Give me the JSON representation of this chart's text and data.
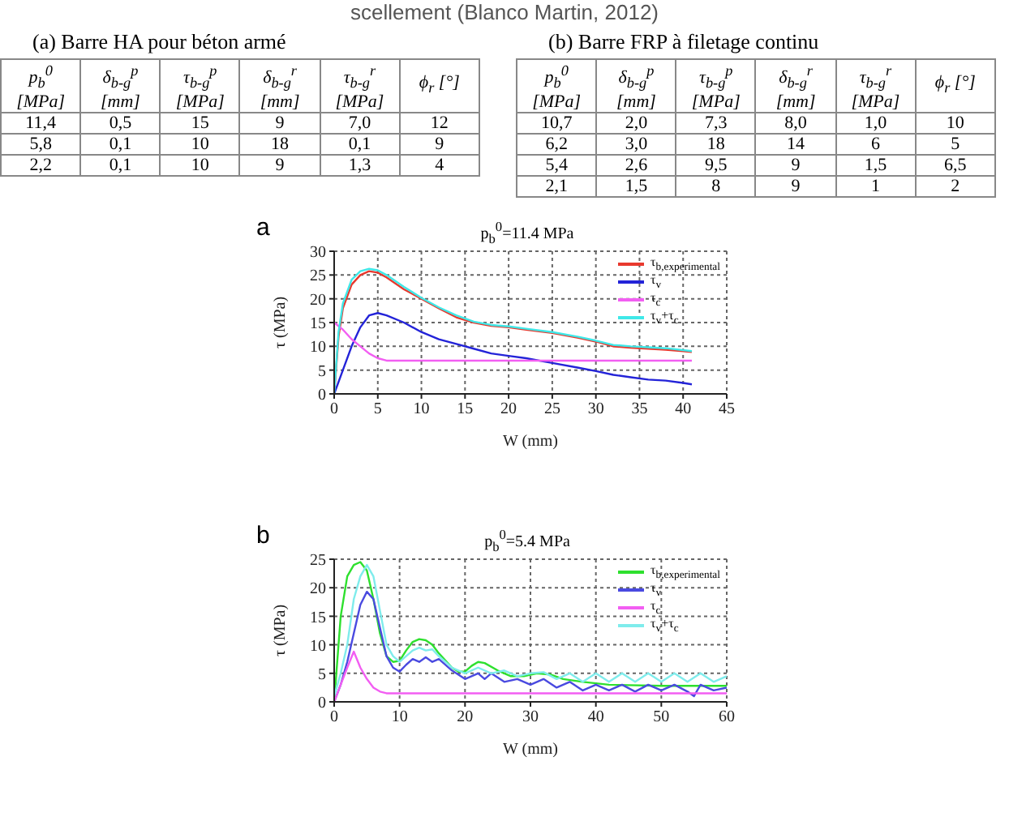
{
  "chart_data": [
    {
      "type": "other",
      "subtitle": "scellement (Blanco Martin, 2012)",
      "title": "(a)  Barre HA pour béton armé",
      "categories": [
        "p$_{b}$$^{0}$ [MPa]",
        "δ$_{b-g}$$^{p}$ [mm]",
        "τ$_{b-g}$$^{p}$ [MPa]",
        "δ$_{b-g}$$^{r}$ [mm]",
        "τ$_{b-g}$$^{r}$ [MPa]",
        "ϕ$_{r}$ [°]"
      ],
      "annotations": [
        "11,4",
        "0,5",
        "15",
        "9",
        "7,0",
        "12",
        "5,8",
        "0,1",
        "10",
        "18",
        "0,1",
        "9",
        "2,2",
        "0,1",
        "10",
        "9",
        "1,3",
        "4"
      ]
    },
    {
      "type": "other",
      "title": "(b)  Barre FRP à filetage continu",
      "categories": [
        "p$_{b}$$^{0}$ [MPa]",
        "δ$_{b-g}$$^{p}$ [mm]",
        "τ$_{b-g}$$^{p}$ [MPa]",
        "δ$_{b-g}$$^{r}$ [mm]",
        "τ$_{b-g}$$^{r}$ [MPa]",
        "ϕ$_{r}$ [°]"
      ],
      "annotations": [
        "10,7",
        "2,0",
        "7,3",
        "8,0",
        "1,0",
        "10",
        "6,2",
        "3,0",
        "18",
        "14",
        "6",
        "5",
        "5,4",
        "2,6",
        "9,5",
        "9",
        "1,5",
        "6,5",
        "2,1",
        "1,5",
        "8",
        "9",
        "1",
        "2"
      ]
    },
    {
      "type": "line",
      "title": "p$_{b}$$^{0}$=11.4 MPa",
      "annotations": [
        "a"
      ],
      "xlabel": "W (mm)",
      "ylabel": "τ (MPa)",
      "xlim": [
        0,
        45
      ],
      "xticks": [
        0,
        5,
        10,
        15,
        20,
        25,
        30,
        35,
        40,
        45
      ],
      "ylim": [
        0,
        30
      ],
      "yticks": [
        0,
        5,
        10,
        15,
        20,
        25,
        30
      ],
      "grid": true,
      "legend": "top right",
      "marker": "none",
      "line_style": "solid",
      "series": [
        {
          "name": "τ$_{b,experimental}$",
          "color": "#e8392e",
          "x": [
            0,
            0.5,
            1,
            2,
            3,
            4,
            5,
            6,
            8,
            10,
            12,
            14,
            16,
            18,
            20,
            22,
            25,
            28,
            30,
            32,
            34,
            36,
            38,
            40,
            41
          ],
          "values": [
            0,
            12,
            18,
            23,
            25,
            25.8,
            25.5,
            24.5,
            22,
            20,
            18,
            16.1,
            15,
            14.3,
            14,
            13.5,
            12.8,
            11.8,
            11,
            10,
            9.7,
            9.5,
            9.3,
            9,
            8.8
          ]
        },
        {
          "name": "τ$_{v}$",
          "color": "#2323d8",
          "x": [
            0,
            1,
            2,
            3,
            4,
            5,
            6,
            8,
            10,
            12,
            14,
            16,
            18,
            20,
            22,
            25,
            28,
            30,
            32,
            34,
            36,
            38,
            40,
            41
          ],
          "values": [
            0,
            5,
            10,
            14,
            16.5,
            17,
            16.5,
            15,
            13,
            11.5,
            10.5,
            9.5,
            8.5,
            8,
            7.5,
            6.5,
            5.5,
            4.8,
            4,
            3.5,
            3,
            2.8,
            2.3,
            2
          ]
        },
        {
          "name": "τ$_{c}$",
          "color": "#f25ef2",
          "x": [
            0,
            1,
            2,
            3,
            4,
            5,
            6,
            41
          ],
          "values": [
            15,
            13.5,
            11.5,
            10,
            8.5,
            7.5,
            7,
            7
          ]
        },
        {
          "name": "τ$_{v}$+τ$_{c}$",
          "color": "#3fe8e8",
          "x": [
            0,
            0.5,
            1,
            2,
            3,
            4,
            5,
            6,
            8,
            10,
            12,
            14,
            16,
            18,
            20,
            22,
            25,
            28,
            30,
            32,
            34,
            36,
            38,
            40,
            41
          ],
          "values": [
            0,
            13,
            19,
            24,
            25.8,
            26.3,
            26,
            25,
            22.5,
            20.2,
            18.2,
            16.5,
            15.2,
            14.5,
            14.2,
            13.7,
            13,
            12,
            11.2,
            10.3,
            10,
            9.8,
            9.6,
            9.2,
            9
          ]
        }
      ]
    },
    {
      "type": "line",
      "title": "p$_{b}$$^{0}$=5.4 MPa",
      "annotations": [
        "b"
      ],
      "xlabel": "W (mm)",
      "ylabel": "τ (MPa)",
      "xlim": [
        0,
        60
      ],
      "xticks": [
        0,
        10,
        20,
        30,
        40,
        50,
        60
      ],
      "ylim": [
        0,
        25
      ],
      "yticks": [
        0,
        5,
        10,
        15,
        20,
        25
      ],
      "grid": true,
      "legend": "top right",
      "marker": "none",
      "line_style": "solid",
      "series": [
        {
          "name": "τ$_{b,experimental}$",
          "color": "#2ee02e",
          "x": [
            0,
            1,
            2,
            3,
            4,
            5,
            6,
            7,
            8,
            9,
            10,
            11,
            12,
            13,
            14,
            15,
            16,
            18,
            19,
            20,
            21,
            22,
            23,
            25,
            27,
            29,
            31,
            33,
            35,
            38,
            42,
            50,
            60
          ],
          "values": [
            0,
            15,
            22,
            24,
            24.5,
            23,
            18,
            12,
            8,
            7,
            7.2,
            9,
            10.5,
            11,
            10.8,
            10,
            8.5,
            6,
            5.3,
            5.3,
            6.3,
            7,
            6.8,
            5.5,
            4.5,
            4.5,
            5,
            4.8,
            4,
            3.5,
            3,
            2.8,
            2.8
          ]
        },
        {
          "name": "τ$_{v}$",
          "color": "#4a4ae0",
          "x": [
            0,
            1,
            2,
            3,
            4,
            5,
            6,
            7,
            8,
            9,
            10,
            11,
            12,
            13,
            14,
            15,
            16,
            18,
            20,
            21,
            22,
            23,
            24,
            26,
            28,
            30,
            32,
            34,
            36,
            38,
            40,
            42,
            44,
            46,
            48,
            50,
            52,
            54,
            55,
            56,
            58,
            60
          ],
          "values": [
            0,
            3,
            7,
            12,
            17,
            19.3,
            18,
            13,
            8,
            6,
            5.3,
            6.5,
            7.5,
            7,
            7.8,
            7,
            7.5,
            5.5,
            4,
            4.5,
            5,
            4,
            5,
            3.5,
            4,
            3,
            4,
            2.5,
            3.5,
            2,
            3,
            2,
            3,
            1.8,
            3,
            2,
            3,
            1.8,
            1,
            3,
            2,
            2.5
          ]
        },
        {
          "name": "τ$_{c}$",
          "color": "#f25ef2",
          "x": [
            0,
            1,
            2,
            3,
            4,
            5,
            6,
            7,
            8,
            60
          ],
          "values": [
            0,
            3,
            6,
            8.8,
            6,
            4,
            2.5,
            1.8,
            1.5,
            1.5
          ]
        },
        {
          "name": "τ$_{v}$+τ$_{c}$",
          "color": "#7fecec",
          "x": [
            0,
            1,
            2,
            3,
            4,
            5,
            6,
            7,
            8,
            9,
            10,
            11,
            12,
            13,
            14,
            15,
            16,
            18,
            20,
            22,
            24,
            26,
            28,
            30,
            32,
            34,
            36,
            38,
            40,
            42,
            44,
            46,
            48,
            50,
            52,
            54,
            56,
            58,
            60
          ],
          "values": [
            1,
            5,
            10,
            18,
            22,
            24,
            22,
            16,
            10,
            8,
            7,
            8,
            9,
            9.5,
            9,
            9.2,
            8,
            6,
            5,
            6,
            5,
            5.5,
            4.5,
            5,
            5.2,
            4,
            5,
            3.5,
            5,
            3.5,
            5,
            3.5,
            5,
            3.5,
            5,
            3.5,
            5,
            3.5,
            4.5
          ]
        }
      ]
    }
  ]
}
